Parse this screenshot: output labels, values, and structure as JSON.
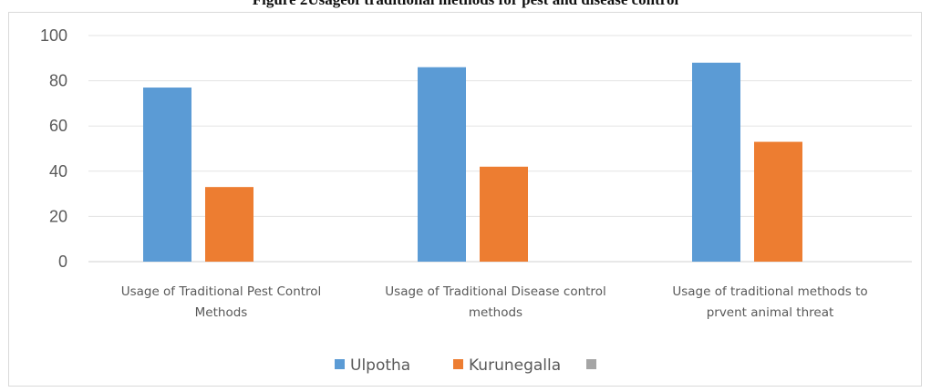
{
  "figure_caption": "Figure 2Usageof traditional methods for pest and disease control",
  "chart_data": {
    "type": "bar",
    "categories": [
      [
        "Usage of Traditional Pest Control",
        "Methods"
      ],
      [
        "Usage of Traditional Disease control",
        "methods"
      ],
      [
        "Usage of traditional methods to",
        "prvent animal threat"
      ]
    ],
    "series": [
      {
        "name": "Ulpotha",
        "color": "#5b9bd5",
        "values": [
          77,
          86,
          88
        ]
      },
      {
        "name": "Kurunegalla",
        "color": "#ed7d31",
        "values": [
          33,
          42,
          53
        ]
      },
      {
        "name": "",
        "color": "#a5a5a5",
        "values": [
          null,
          null,
          null
        ]
      }
    ],
    "ylim": [
      0,
      100
    ],
    "yticks": [
      0,
      20,
      40,
      60,
      80,
      100
    ],
    "grid": true,
    "legend": "bottom-center"
  }
}
